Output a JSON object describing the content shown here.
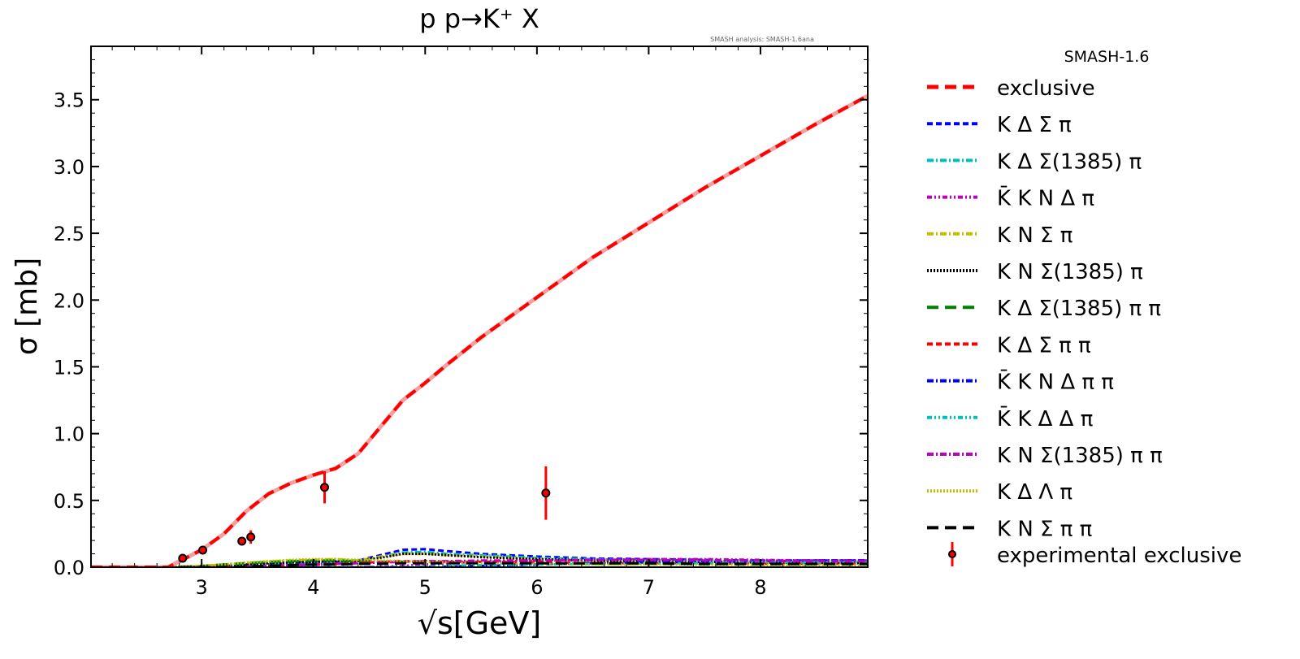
{
  "chart_data": {
    "type": "line",
    "title": "p p→K⁺ X",
    "annotation": "SMASH analysis: SMASH-1.6ana",
    "xlabel": "√s[GeV]",
    "ylabel": "σ [mb]",
    "xlim": [
      2.01,
      8.96
    ],
    "ylim": [
      0.0,
      3.9
    ],
    "xticks": [
      3,
      4,
      5,
      6,
      7,
      8
    ],
    "xtick_labels": [
      "3",
      "4",
      "5",
      "6",
      "7",
      "8"
    ],
    "yticks": [
      0.0,
      0.5,
      1.0,
      1.5,
      2.0,
      2.5,
      3.0,
      3.5
    ],
    "ytick_labels": [
      "0.0",
      "0.5",
      "1.0",
      "1.5",
      "2.0",
      "2.5",
      "3.0",
      "3.5"
    ],
    "grid": false,
    "legend_title": "SMASH-1.6",
    "legend_placement": "outside-right",
    "x": [
      2.01,
      2.7,
      3.0,
      3.2,
      3.4,
      3.6,
      3.8,
      4.0,
      4.2,
      4.4,
      4.6,
      4.8,
      5.0,
      5.2,
      5.5,
      6.0,
      6.5,
      7.0,
      7.5,
      8.0,
      8.5,
      8.96
    ],
    "series": [
      {
        "name": "exclusive",
        "color": "#ff0000",
        "dash": "14,8",
        "width": 4,
        "values": [
          0,
          0,
          0.13,
          0.25,
          0.42,
          0.55,
          0.63,
          0.69,
          0.74,
          0.85,
          1.05,
          1.25,
          1.38,
          1.52,
          1.72,
          2.02,
          2.32,
          2.58,
          2.84,
          3.08,
          3.32,
          3.53
        ]
      },
      {
        "name": "K Δ Σ π",
        "color": "#0000ff",
        "dash": "7,4",
        "width": 3,
        "values": [
          0,
          0,
          0.005,
          0.01,
          0.015,
          0.02,
          0.03,
          0.04,
          0.04,
          0.05,
          0.09,
          0.13,
          0.135,
          0.12,
          0.1,
          0.08,
          0.065,
          0.06,
          0.055,
          0.05,
          0.05,
          0.05
        ]
      },
      {
        "name": "K Δ Σ(1385) π",
        "color": "#00bfbf",
        "dash": "8,3,2,3",
        "width": 3,
        "values": [
          0,
          0,
          0.004,
          0.008,
          0.012,
          0.018,
          0.025,
          0.03,
          0.035,
          0.04,
          0.08,
          0.11,
          0.115,
          0.1,
          0.09,
          0.07,
          0.06,
          0.05,
          0.045,
          0.04,
          0.04,
          0.04
        ]
      },
      {
        "name": "K̄ K N Δ π",
        "color": "#bf00bf",
        "dash": "6,3,2,3,2,3",
        "width": 3,
        "values": [
          0,
          0,
          0,
          0,
          0,
          0,
          0,
          0,
          0,
          0,
          0.005,
          0.01,
          0.02,
          0.03,
          0.04,
          0.05,
          0.055,
          0.06,
          0.06,
          0.055,
          0.05,
          0.05
        ]
      },
      {
        "name": "K N Σ π",
        "color": "#bfbf00",
        "dash": "8,3,2,3",
        "width": 3,
        "values": [
          0,
          0,
          0.01,
          0.02,
          0.03,
          0.04,
          0.05,
          0.055,
          0.06,
          0.05,
          0.08,
          0.1,
          0.1,
          0.09,
          0.08,
          0.06,
          0.05,
          0.045,
          0.04,
          0.035,
          0.03,
          0.03
        ]
      },
      {
        "name": "K N Σ(1385) π",
        "color": "#000000",
        "dash": "2,2",
        "width": 3,
        "values": [
          0,
          0,
          0.005,
          0.01,
          0.02,
          0.03,
          0.035,
          0.04,
          0.045,
          0.045,
          0.07,
          0.1,
          0.1,
          0.09,
          0.075,
          0.06,
          0.05,
          0.045,
          0.04,
          0.035,
          0.03,
          0.03
        ]
      },
      {
        "name": "K Δ Σ(1385) π π",
        "color": "#008000",
        "dash": "14,8",
        "width": 3,
        "values": [
          0,
          0,
          0.01,
          0.02,
          0.03,
          0.04,
          0.045,
          0.05,
          0.05,
          0.045,
          0.04,
          0.04,
          0.035,
          0.035,
          0.03,
          0.03,
          0.025,
          0.025,
          0.02,
          0.02,
          0.02,
          0.02
        ]
      },
      {
        "name": "K Δ Σ π π",
        "color": "#ff0000",
        "dash": "7,4",
        "width": 3,
        "values": [
          0,
          0,
          0,
          0.002,
          0.005,
          0.01,
          0.015,
          0.02,
          0.025,
          0.03,
          0.04,
          0.045,
          0.045,
          0.04,
          0.04,
          0.035,
          0.03,
          0.03,
          0.03,
          0.025,
          0.025,
          0.025
        ]
      },
      {
        "name": "K̄ K N Δ π π",
        "color": "#0000ff",
        "dash": "8,3,2,3",
        "width": 3,
        "values": [
          0,
          0,
          0,
          0,
          0,
          0,
          0,
          0,
          0,
          0,
          0,
          0,
          0.002,
          0.005,
          0.01,
          0.02,
          0.03,
          0.035,
          0.04,
          0.045,
          0.05,
          0.05
        ]
      },
      {
        "name": "K̄ K Δ Δ π",
        "color": "#00bfbf",
        "dash": "6,3,2,3,2,3",
        "width": 3,
        "values": [
          0,
          0,
          0,
          0,
          0,
          0,
          0,
          0,
          0,
          0,
          0,
          0.002,
          0.005,
          0.01,
          0.015,
          0.02,
          0.025,
          0.03,
          0.03,
          0.035,
          0.035,
          0.035
        ]
      },
      {
        "name": "K N Σ(1385) π π",
        "color": "#bf00bf",
        "dash": "8,3,2,3",
        "width": 3,
        "values": [
          0,
          0,
          0,
          0.002,
          0.005,
          0.01,
          0.015,
          0.02,
          0.025,
          0.03,
          0.035,
          0.04,
          0.045,
          0.045,
          0.05,
          0.05,
          0.055,
          0.055,
          0.05,
          0.05,
          0.045,
          0.045
        ]
      },
      {
        "name": "K Δ Λ π",
        "color": "#bfbf00",
        "dash": "2,2",
        "width": 3,
        "values": [
          0,
          0,
          0.01,
          0.02,
          0.035,
          0.045,
          0.055,
          0.06,
          0.06,
          0.055,
          0.05,
          0.045,
          0.04,
          0.035,
          0.03,
          0.025,
          0.02,
          0.02,
          0.02,
          0.015,
          0.015,
          0.015
        ]
      },
      {
        "name": "K N Σ π π",
        "color": "#000000",
        "dash": "14,8",
        "width": 3,
        "values": [
          0,
          0,
          0,
          0.002,
          0.005,
          0.01,
          0.015,
          0.02,
          0.02,
          0.025,
          0.025,
          0.03,
          0.03,
          0.03,
          0.03,
          0.03,
          0.03,
          0.03,
          0.025,
          0.025,
          0.025,
          0.025
        ]
      }
    ],
    "experimental": {
      "name": "experimental exclusive",
      "color": "#ff0000",
      "points": [
        {
          "x": 2.83,
          "y": 0.067,
          "err": 0.01
        },
        {
          "x": 3.01,
          "y": 0.128,
          "err": 0.02
        },
        {
          "x": 3.36,
          "y": 0.195,
          "err": 0.03
        },
        {
          "x": 3.44,
          "y": 0.226,
          "err": 0.05
        },
        {
          "x": 4.1,
          "y": 0.598,
          "err": 0.12
        },
        {
          "x": 6.08,
          "y": 0.555,
          "err": 0.2
        }
      ]
    }
  }
}
